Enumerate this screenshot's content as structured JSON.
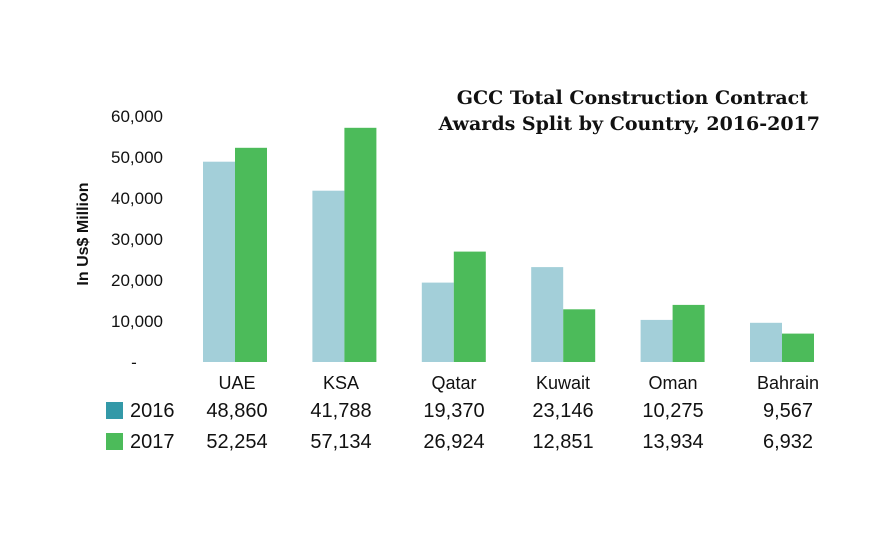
{
  "chart_data": {
    "type": "bar",
    "title_lines": [
      "GCC Total Construction Contract",
      "Awards Split by Country, 2016-2017"
    ],
    "ylabel": "In Us$ Million",
    "ylim": [
      0,
      60000
    ],
    "yticks": [
      "-",
      "10,000",
      "20,000",
      "30,000",
      "40,000",
      "50,000",
      "60,000"
    ],
    "grid": false,
    "categories": [
      "UAE",
      "KSA",
      "Qatar",
      "Kuwait",
      "Oman",
      "Bahrain"
    ],
    "series": [
      {
        "name": "2016",
        "color": "#a3cfd9",
        "legend_color": "#3399a8",
        "values": [
          48860,
          41788,
          19370,
          23146,
          10275,
          9567
        ],
        "labels": [
          "48,860",
          "41,788",
          "19,370",
          "23,146",
          "10,275",
          "9,567"
        ]
      },
      {
        "name": "2017",
        "color": "#4cbb5a",
        "legend_color": "#4cbb5a",
        "values": [
          52254,
          57134,
          26924,
          12851,
          13934,
          6932
        ],
        "labels": [
          "52,254",
          "57,134",
          "26,924",
          "12,851",
          "13,934",
          "6,932"
        ]
      }
    ]
  }
}
